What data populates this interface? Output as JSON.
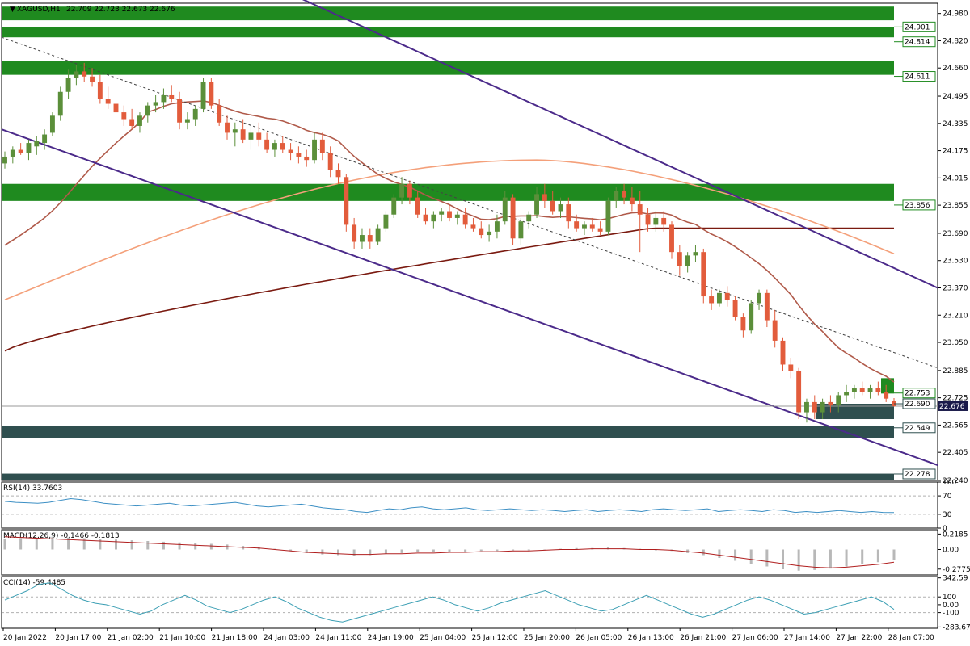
{
  "symbol_title": "XAGUSD,H1",
  "ohlc_text": "22.709 22.723 22.673 22.676",
  "current_price": "22.676",
  "colors": {
    "bull": "#5b8f3a",
    "bear": "#e25c3c",
    "zone_green": "#1f8a1f",
    "zone_dark": "#2f4f4f",
    "channel": "#4b2a8a",
    "ma_fast": "#b05a4a",
    "ma_mid": "#f4a07a",
    "ma_slow": "#7a1a10",
    "rsi_line": "#3c8fc4",
    "macd_signal": "#b01e1e",
    "macd_hist": "#b8b8b8",
    "cci_line": "#3c9fb4",
    "price_tag": "#1a1a4a"
  },
  "chart_data": [
    {
      "type": "candlestick",
      "title": "XAGUSD,H1",
      "y_ticks": [
        "24.980",
        "24.820",
        "24.660",
        "24.495",
        "24.335",
        "24.175",
        "24.015",
        "23.855",
        "23.690",
        "23.530",
        "23.370",
        "23.210",
        "23.050",
        "22.885",
        "22.725",
        "22.565",
        "22.405",
        "22.240"
      ],
      "ylim": [
        22.24,
        25.04
      ],
      "x_ticks": [
        "20 Jan 2022",
        "20 Jan 17:00",
        "21 Jan 02:00",
        "21 Jan 10:00",
        "21 Jan 18:00",
        "24 Jan 03:00",
        "24 Jan 11:00",
        "24 Jan 19:00",
        "25 Jan 04:00",
        "25 Jan 12:00",
        "25 Jan 20:00",
        "26 Jan 05:00",
        "26 Jan 13:00",
        "26 Jan 21:00",
        "27 Jan 06:00",
        "27 Jan 14:00",
        "27 Jan 22:00",
        "28 Jan 07:00"
      ],
      "candles": [
        [
          24.1,
          24.17,
          24.07,
          24.14
        ],
        [
          24.14,
          24.2,
          24.1,
          24.18
        ],
        [
          24.18,
          24.22,
          24.15,
          24.16
        ],
        [
          24.16,
          24.24,
          24.12,
          24.22
        ],
        [
          24.2,
          24.26,
          24.15,
          24.23
        ],
        [
          24.22,
          24.3,
          24.18,
          24.27
        ],
        [
          24.28,
          24.4,
          24.26,
          24.38
        ],
        [
          24.38,
          24.55,
          24.35,
          24.52
        ],
        [
          24.52,
          24.65,
          24.48,
          24.6
        ],
        [
          24.6,
          24.68,
          24.56,
          24.64
        ],
        [
          24.64,
          24.69,
          24.58,
          24.61
        ],
        [
          24.61,
          24.66,
          24.55,
          24.58
        ],
        [
          24.58,
          24.62,
          24.45,
          24.48
        ],
        [
          24.48,
          24.55,
          24.42,
          24.45
        ],
        [
          24.45,
          24.5,
          24.38,
          24.4
        ],
        [
          24.4,
          24.44,
          24.32,
          24.36
        ],
        [
          24.36,
          24.42,
          24.3,
          24.32
        ],
        [
          24.32,
          24.4,
          24.28,
          24.38
        ],
        [
          24.38,
          24.46,
          24.34,
          24.44
        ],
        [
          24.44,
          24.5,
          24.4,
          24.46
        ],
        [
          24.46,
          24.54,
          24.42,
          24.5
        ],
        [
          24.5,
          24.56,
          24.46,
          24.48
        ],
        [
          24.48,
          24.52,
          24.3,
          24.34
        ],
        [
          24.34,
          24.4,
          24.3,
          24.36
        ],
        [
          24.36,
          24.44,
          24.32,
          24.42
        ],
        [
          24.42,
          24.6,
          24.4,
          24.58
        ],
        [
          24.58,
          24.6,
          24.42,
          24.44
        ],
        [
          24.44,
          24.48,
          24.32,
          24.34
        ],
        [
          24.34,
          24.38,
          24.24,
          24.28
        ],
        [
          24.28,
          24.34,
          24.2,
          24.3
        ],
        [
          24.3,
          24.36,
          24.22,
          24.24
        ],
        [
          24.24,
          24.32,
          24.18,
          24.28
        ],
        [
          24.28,
          24.34,
          24.2,
          24.24
        ],
        [
          24.24,
          24.28,
          24.16,
          24.18
        ],
        [
          24.18,
          24.24,
          24.14,
          24.22
        ],
        [
          24.22,
          24.26,
          24.16,
          24.18
        ],
        [
          24.18,
          24.22,
          24.12,
          24.16
        ],
        [
          24.16,
          24.2,
          24.1,
          24.14
        ],
        [
          24.14,
          24.18,
          24.08,
          24.12
        ],
        [
          24.12,
          24.28,
          24.1,
          24.24
        ],
        [
          24.24,
          24.28,
          24.12,
          24.16
        ],
        [
          24.16,
          24.2,
          24.02,
          24.06
        ],
        [
          24.06,
          24.1,
          23.98,
          24.02
        ],
        [
          24.02,
          24.04,
          23.7,
          23.74
        ],
        [
          23.74,
          23.78,
          23.6,
          23.64
        ],
        [
          23.64,
          23.72,
          23.6,
          23.68
        ],
        [
          23.68,
          23.72,
          23.6,
          23.64
        ],
        [
          23.64,
          23.74,
          23.62,
          23.72
        ],
        [
          23.72,
          23.82,
          23.7,
          23.8
        ],
        [
          23.8,
          23.92,
          23.78,
          23.9
        ],
        [
          23.9,
          24.02,
          23.86,
          23.98
        ],
        [
          23.98,
          24.0,
          23.86,
          23.9
        ],
        [
          23.9,
          23.94,
          23.78,
          23.8
        ],
        [
          23.8,
          23.84,
          23.74,
          23.76
        ],
        [
          23.76,
          23.82,
          23.72,
          23.8
        ],
        [
          23.8,
          23.84,
          23.76,
          23.82
        ],
        [
          23.82,
          23.86,
          23.76,
          23.78
        ],
        [
          23.78,
          23.82,
          23.74,
          23.8
        ],
        [
          23.8,
          23.84,
          23.72,
          23.74
        ],
        [
          23.74,
          23.78,
          23.7,
          23.72
        ],
        [
          23.72,
          23.76,
          23.66,
          23.68
        ],
        [
          23.68,
          23.74,
          23.64,
          23.7
        ],
        [
          23.7,
          23.8,
          23.66,
          23.76
        ],
        [
          23.76,
          23.94,
          23.74,
          23.9
        ],
        [
          23.9,
          23.92,
          23.62,
          23.66
        ],
        [
          23.66,
          23.78,
          23.62,
          23.76
        ],
        [
          23.76,
          23.82,
          23.72,
          23.8
        ],
        [
          23.8,
          23.96,
          23.78,
          23.92
        ],
        [
          23.92,
          23.98,
          23.84,
          23.88
        ],
        [
          23.88,
          23.94,
          23.8,
          23.82
        ],
        [
          23.82,
          23.9,
          23.78,
          23.86
        ],
        [
          23.86,
          23.9,
          23.72,
          23.76
        ],
        [
          23.76,
          23.8,
          23.7,
          23.72
        ],
        [
          23.72,
          23.76,
          23.68,
          23.74
        ],
        [
          23.74,
          23.78,
          23.7,
          23.72
        ],
        [
          23.72,
          23.76,
          23.68,
          23.7
        ],
        [
          23.7,
          23.9,
          23.68,
          23.88
        ],
        [
          23.88,
          23.96,
          23.84,
          23.94
        ],
        [
          23.94,
          23.98,
          23.86,
          23.9
        ],
        [
          23.9,
          23.96,
          23.82,
          23.86
        ],
        [
          23.86,
          23.94,
          23.58,
          23.8
        ],
        [
          23.8,
          23.84,
          23.7,
          23.74
        ],
        [
          23.74,
          23.82,
          23.7,
          23.78
        ],
        [
          23.78,
          23.82,
          23.7,
          23.74
        ],
        [
          23.74,
          23.76,
          23.54,
          23.58
        ],
        [
          23.58,
          23.62,
          23.44,
          23.5
        ],
        [
          23.5,
          23.58,
          23.46,
          23.56
        ],
        [
          23.56,
          23.62,
          23.52,
          23.58
        ],
        [
          23.58,
          23.6,
          23.28,
          23.32
        ],
        [
          23.32,
          23.36,
          23.24,
          23.28
        ],
        [
          23.28,
          23.36,
          23.26,
          23.34
        ],
        [
          23.34,
          23.38,
          23.26,
          23.3
        ],
        [
          23.3,
          23.32,
          23.18,
          23.2
        ],
        [
          23.2,
          23.22,
          23.08,
          23.12
        ],
        [
          23.12,
          23.3,
          23.1,
          23.28
        ],
        [
          23.28,
          23.36,
          23.24,
          23.34
        ],
        [
          23.34,
          23.36,
          23.14,
          23.18
        ],
        [
          23.18,
          23.24,
          23.02,
          23.06
        ],
        [
          23.06,
          23.08,
          22.88,
          22.92
        ],
        [
          22.92,
          22.96,
          22.84,
          22.88
        ],
        [
          22.88,
          22.9,
          22.6,
          22.64
        ],
        [
          22.64,
          22.72,
          22.58,
          22.7
        ],
        [
          22.7,
          22.74,
          22.6,
          22.64
        ],
        [
          22.64,
          22.72,
          22.6,
          22.7
        ],
        [
          22.7,
          22.74,
          22.64,
          22.68
        ],
        [
          22.68,
          22.76,
          22.64,
          22.74
        ],
        [
          22.74,
          22.8,
          22.7,
          22.76
        ],
        [
          22.76,
          22.8,
          22.72,
          22.78
        ],
        [
          22.78,
          22.82,
          22.74,
          22.76
        ],
        [
          22.76,
          22.8,
          22.72,
          22.78
        ],
        [
          22.78,
          22.82,
          22.74,
          22.76
        ],
        [
          22.76,
          22.8,
          22.7,
          22.72
        ],
        [
          22.709,
          22.723,
          22.673,
          22.676
        ]
      ],
      "zones": [
        {
          "from": 24.94,
          "to": 25.02,
          "color": "zone_green"
        },
        {
          "from": 24.84,
          "to": 24.9,
          "color": "zone_green"
        },
        {
          "from": 24.62,
          "to": 24.7,
          "color": "zone_green"
        },
        {
          "from": 23.88,
          "to": 23.98,
          "color": "zone_green"
        },
        {
          "from": 22.49,
          "to": 22.56,
          "color": "zone_dark"
        },
        {
          "from": 22.24,
          "to": 22.28,
          "color": "zone_dark"
        }
      ],
      "level_labels": [
        "24.901",
        "24.814",
        "24.611",
        "23.856",
        "22.753",
        "22.690",
        "22.549",
        "22.278"
      ],
      "level_values": [
        24.901,
        24.814,
        24.611,
        23.856,
        22.753,
        22.69,
        22.549,
        22.278
      ]
    },
    {
      "type": "line",
      "title": "RSI(14) 33.7603",
      "ylim": [
        0,
        100
      ],
      "y_ticks": [
        "100",
        "70",
        "30",
        "0"
      ],
      "levels": [
        70,
        30
      ],
      "values": [
        58,
        56,
        55,
        54,
        56,
        60,
        64,
        62,
        58,
        54,
        52,
        50,
        48,
        50,
        52,
        54,
        50,
        48,
        50,
        52,
        54,
        56,
        52,
        48,
        46,
        48,
        50,
        52,
        48,
        44,
        42,
        40,
        36,
        34,
        38,
        42,
        40,
        44,
        46,
        42,
        40,
        42,
        44,
        40,
        38,
        40,
        42,
        40,
        38,
        40,
        38,
        36,
        38,
        40,
        36,
        38,
        40,
        38,
        36,
        40,
        42,
        40,
        38,
        40,
        42,
        36,
        38,
        40,
        38,
        36,
        40,
        38,
        34,
        36,
        34,
        36,
        38,
        36,
        34,
        36,
        34,
        33.76
      ]
    },
    {
      "type": "bar",
      "title": "MACD(12,26,9) -0.1466 -0.1813",
      "ylim": [
        -0.36,
        0.28
      ],
      "y_ticks": [
        "0.2185",
        "0.00",
        "-0.2775"
      ],
      "histogram": [
        0.15,
        0.16,
        0.17,
        0.18,
        0.17,
        0.16,
        0.15,
        0.14,
        0.13,
        0.12,
        0.11,
        0.1,
        0.09,
        0.08,
        0.07,
        0.05,
        0.03,
        0.01,
        -0.02,
        -0.05,
        -0.07,
        -0.08,
        -0.09,
        -0.08,
        -0.06,
        -0.05,
        -0.04,
        -0.04,
        -0.03,
        -0.03,
        -0.02,
        -0.02,
        -0.01,
        -0.01,
        0.0,
        0.01,
        0.02,
        0.02,
        0.03,
        0.02,
        0.01,
        0.0,
        -0.02,
        -0.05,
        -0.08,
        -0.12,
        -0.16,
        -0.2,
        -0.24,
        -0.28,
        -0.3,
        -0.29,
        -0.27,
        -0.24,
        -0.21,
        -0.18,
        -0.15
      ],
      "signal": [
        0.18,
        0.17,
        0.16,
        0.15,
        0.14,
        0.13,
        0.12,
        0.11,
        0.1,
        0.09,
        0.08,
        0.07,
        0.06,
        0.05,
        0.04,
        0.03,
        0.02,
        0.0,
        -0.02,
        -0.04,
        -0.05,
        -0.06,
        -0.07,
        -0.07,
        -0.06,
        -0.06,
        -0.05,
        -0.05,
        -0.04,
        -0.04,
        -0.03,
        -0.03,
        -0.02,
        -0.02,
        -0.01,
        0.0,
        0.0,
        0.01,
        0.01,
        0.01,
        0.0,
        0.0,
        -0.01,
        -0.03,
        -0.05,
        -0.08,
        -0.11,
        -0.14,
        -0.17,
        -0.2,
        -0.23,
        -0.25,
        -0.26,
        -0.25,
        -0.23,
        -0.21,
        -0.18
      ]
    },
    {
      "type": "line",
      "title": "CCI(14) -59.4485",
      "ylim": [
        -300,
        360
      ],
      "y_ticks": [
        "342.59",
        "100",
        "0.00",
        "-100",
        "-283.675"
      ],
      "levels": [
        100,
        -100
      ],
      "values": [
        60,
        120,
        180,
        260,
        280,
        200,
        120,
        60,
        20,
        0,
        -40,
        -80,
        -120,
        -80,
        0,
        60,
        120,
        60,
        -20,
        -60,
        -100,
        -60,
        0,
        60,
        100,
        40,
        -40,
        -100,
        -160,
        -200,
        -220,
        -180,
        -140,
        -100,
        -60,
        -20,
        20,
        60,
        100,
        60,
        0,
        -40,
        -80,
        -40,
        20,
        60,
        100,
        140,
        180,
        120,
        60,
        0,
        -40,
        -80,
        -60,
        0,
        60,
        120,
        60,
        0,
        -60,
        -120,
        -160,
        -120,
        -60,
        0,
        60,
        100,
        60,
        0,
        -60,
        -120,
        -100,
        -60,
        -20,
        20,
        60,
        100,
        40,
        -59.45
      ]
    }
  ]
}
